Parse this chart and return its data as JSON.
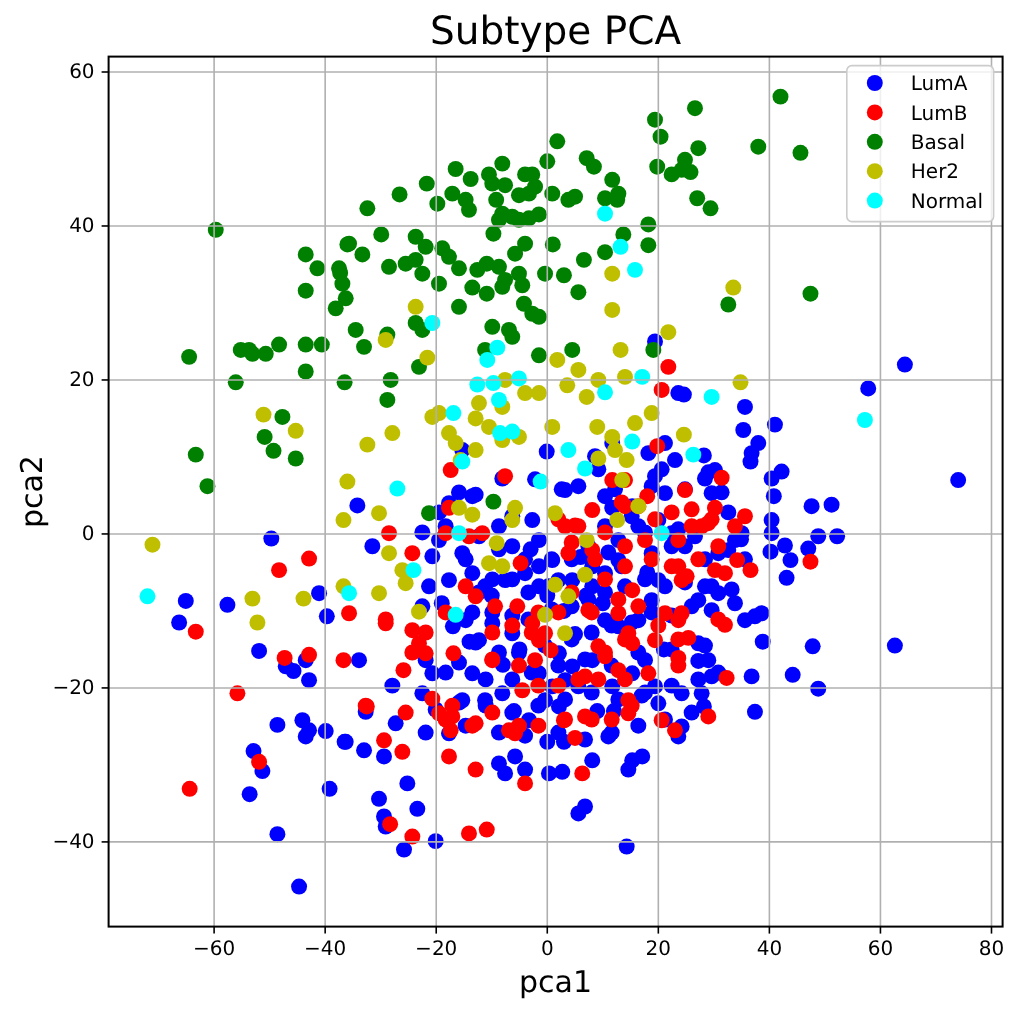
{
  "chart_data": {
    "type": "scatter",
    "title": "Subtype PCA",
    "xlabel": "pca1",
    "ylabel": "pca2",
    "xlim": [
      -79,
      82
    ],
    "ylim": [
      -51,
      62
    ],
    "xticks": [
      -60,
      -40,
      -20,
      0,
      20,
      40,
      60,
      80
    ],
    "yticks": [
      -40,
      -20,
      0,
      20,
      40,
      60
    ],
    "grid": true,
    "legend": "top right",
    "marker": "circle",
    "series": [
      {
        "name": "LumA",
        "color": "#0000ff",
        "x": [
          -49.7,
          -41.1,
          -39.7,
          -57.6,
          -65.1,
          -66.3,
          -51.9,
          -47.1,
          -45.7,
          -43.5,
          -42.9,
          -48.6,
          -44.1,
          -42.9,
          -43.5,
          -39.9,
          -36.5,
          -52.9,
          -51.3,
          -53.6,
          -39.2,
          -48.6,
          -44.7,
          -34.2,
          -31.5,
          -33.9,
          -27.9,
          -32.7,
          -27.3,
          -36.3,
          -33.0,
          -29.4,
          -25.2,
          -30.3,
          -29.4,
          -29.1,
          -23.4,
          -25.8,
          -20.1,
          -20.7,
          -21.3,
          -22.5,
          -21.9,
          -20.7,
          -22.5,
          -17.7,
          -14.7,
          -12.3,
          -13.5,
          -15.3,
          -17.7,
          -8.7,
          -7.6,
          -5.8,
          -4.0,
          0.3,
          2.7,
          5.6,
          6.8,
          8.1,
          14.3,
          11.0,
          14.6,
          15.3,
          17.1,
          23.6,
          19.4,
          -11.2,
          -7.6,
          -4.0,
          -1.5,
          -9.9,
          -6.3,
          -1.5,
          0.9,
          3.2,
          5.6,
          -0.4,
          2.1,
          -3.3,
          -11.2,
          -8.1,
          2.1,
          4.5,
          8.1,
          11.7,
          15.3,
          17.6,
          10.4,
          12.8,
          16.4,
          18.8,
          8.1,
          10.4,
          12.8,
          8.1,
          -1.5,
          0.9,
          4.5,
          -2.7,
          -1.5,
          -6.3,
          -8.7,
          10.4,
          12.8,
          16.4,
          20.0,
          22.4,
          24.8,
          20.0,
          18.8,
          -13.5,
          -15.3,
          -18.3,
          -19.5,
          15.3,
          11.7,
          19.4,
          23.6,
          21.2,
          23.0,
          18.2,
          11.7,
          8.6,
          19.4,
          21.2,
          -0.1,
          3.2,
          10.4,
          -8.1,
          -12.9,
          -15.3,
          -17.7,
          64.4,
          57.8,
          35.6,
          41.0,
          35.3,
          38.0,
          36.8,
          36.6,
          24.6,
          28.2,
          30.2,
          28.4,
          29.6,
          42.2,
          40.4,
          40.8,
          74.0,
          47.6,
          51.2,
          40.4,
          40.4,
          40.2,
          42.8,
          43.8,
          43.1,
          47.0,
          48.8,
          52.2,
          33.8,
          35.0,
          30.8,
          32.6,
          29.6,
          30.8,
          27.2,
          29.6,
          33.8,
          35.6,
          38.6,
          37.4,
          38.8,
          47.8,
          62.6,
          36.8,
          44.2,
          48.8,
          37.4,
          27.8,
          28.2,
          29.0,
          27.2,
          29.6,
          24.2,
          24.2,
          27.2,
          0,
          3,
          5,
          -5,
          -8,
          7,
          10,
          18,
          21,
          -3,
          2,
          6,
          -10,
          -14,
          -17,
          -19,
          0,
          3,
          -6,
          12,
          17,
          20,
          9,
          -13.5,
          -6.3,
          -2.2,
          2.6,
          5.6,
          9.2,
          12.2,
          18.8,
          20.6,
          24.8,
          29.0,
          31.4,
          32.6,
          34.9,
          35.6,
          33.2,
          28.4,
          28.4,
          26.6,
          23.6,
          22.4,
          17.6,
          15.2,
          13.4,
          11.0,
          7.4,
          4.4,
          0.8,
          -4.0,
          -6.3,
          -3.4,
          0.2,
          -9.9,
          -12.3,
          -13.5,
          -9.9,
          -6.3,
          -3.4,
          0.8,
          4.4,
          7.4,
          10.4,
          14.0,
          17.6,
          21.2,
          24.8,
          26.0,
          22.4,
          18.8,
          15.2,
          11.6,
          8.0,
          4.4,
          -0.4,
          -5.1,
          -8.7,
          -12.9,
          -15.9,
          -18.3,
          -11.1,
          -6.3,
          -2.8,
          2.0,
          6.8,
          11.6,
          16.4,
          22.4,
          28.4,
          30.8,
          27.2,
          22.4,
          17.6,
          12.8,
          8.0,
          3.2,
          -1.6,
          -6.3,
          -11.1,
          -15.9,
          -20.1,
          -21.9,
          -14.7,
          -8.7,
          -4.0,
          2.0,
          6.8,
          11.6,
          16.4,
          21.2,
          26.0,
          -15.9,
          -19.5,
          -22.5,
          -12.3,
          -8.7,
          -14.7
        ],
        "values": [
          -0.6,
          -7.7,
          -10.7,
          -9.2,
          -8.7,
          -11.5,
          -15.2,
          -17.2,
          -17.8,
          -16.4,
          -19.0,
          -24.8,
          -24.2,
          -25.5,
          -26.3,
          -25.6,
          -27.0,
          -28.2,
          -30.8,
          -33.8,
          -33.1,
          -39.0,
          -45.8,
          3.7,
          -1.6,
          -16.4,
          -19.7,
          -23.1,
          -24.6,
          -27.0,
          -28.1,
          -28.9,
          -32.4,
          -34.4,
          -36.7,
          -38.0,
          -35.7,
          -41.0,
          -39.9,
          -2.9,
          -6.8,
          -9.4,
          -16.4,
          -18.1,
          -20.7,
          -6.0,
          -11.2,
          -13.8,
          -18.1,
          -21.6,
          -25.9,
          -29.8,
          -31.1,
          -28.9,
          -30.6,
          -31.1,
          -30.9,
          -36.3,
          -35.4,
          -29.4,
          -40.6,
          -26.3,
          -30.6,
          -29.4,
          -28.9,
          -26.3,
          -19.8,
          -6.8,
          -6.0,
          -5.1,
          -6.8,
          -11.6,
          -12.9,
          -18.1,
          -19.8,
          -19.0,
          -19.8,
          -21.6,
          -22.4,
          -24.2,
          -21.6,
          -20.7,
          -15.5,
          -17.2,
          -16.4,
          -19.8,
          -18.1,
          -16.4,
          -11.2,
          -12.0,
          -11.2,
          -8.6,
          -6.8,
          -5.1,
          -3.4,
          -4.2,
          -4.2,
          -3.4,
          -6.0,
          1.8,
          -0.8,
          -1.6,
          1.0,
          1.0,
          -0.8,
          1.0,
          1.8,
          0.1,
          -1.6,
          -6.0,
          -2.5,
          -5.1,
          -2.5,
          1.0,
          -0.8,
          3.6,
          3.4,
          25.0,
          18.3,
          11.8,
          9.6,
          10.5,
          11.8,
          10.1,
          7.5,
          5.3,
          10.7,
          5.7,
          4.9,
          7.2,
          5.1,
          10.9,
          4.0,
          22.0,
          18.9,
          16.5,
          14.2,
          13.5,
          11.8,
          10.5,
          9.4,
          18.1,
          10.2,
          8.3,
          7.2,
          5.3,
          8.1,
          7.2,
          4.9,
          7.0,
          3.6,
          3.8,
          1.8,
          0.1,
          -2.3,
          -1.5,
          -3.4,
          -5.7,
          -1.9,
          -0.3,
          -0.3,
          -0.8,
          0.1,
          -2.5,
          -2.1,
          -6.8,
          -7.7,
          -8.6,
          -9.9,
          -9.0,
          -11.2,
          -10.3,
          -10.7,
          -14.0,
          -14.6,
          -14.5,
          -18.5,
          -18.3,
          -20.1,
          -23.1,
          -20.7,
          -22.4,
          -16.4,
          -16.5,
          -18.5,
          -20.7,
          -25.0,
          -14.2,
          -8,
          -10,
          -13,
          -15,
          -17,
          -8,
          -9,
          -5,
          -15,
          -2,
          -6,
          -3,
          -8,
          -14,
          -12,
          -9,
          -27,
          -27,
          -23,
          -23,
          -21,
          -22,
          -23,
          4.9,
          2.3,
          7.1,
          5.8,
          6.2,
          8.4,
          5.8,
          6.2,
          8.4,
          5.8,
          8.0,
          5.4,
          2.8,
          -0.7,
          -3.3,
          -7.2,
          -6.8,
          -3.3,
          -0.3,
          0.6,
          -1.6,
          0.2,
          2.3,
          -4.2,
          -2.4,
          -1.6,
          -3.3,
          -3.3,
          -3.3,
          -5.9,
          -7.6,
          -6.8,
          -5.9,
          -7.6,
          -10.2,
          -10.2,
          -10.6,
          -11.1,
          -9.8,
          -9.4,
          -8.5,
          -7.6,
          -6.8,
          -5.9,
          -6.8,
          -6.3,
          -9.4,
          -10.6,
          -10.2,
          -11.5,
          -11.9,
          -12.8,
          -13.7,
          -14.5,
          -15.4,
          -15.4,
          -14.1,
          -16.7,
          -18.0,
          -18.9,
          -18.9,
          -18.0,
          -17.1,
          -16.3,
          -17.1,
          -15.4,
          -15.0,
          -14.5,
          -18.0,
          -18.9,
          -19.7,
          -20.6,
          -21.5,
          -20.6,
          -21.5,
          -22.3,
          -23.2,
          -22.3,
          -21.9,
          -22.8,
          -25.8,
          -24.9,
          -25.8,
          -26.2,
          -25.8,
          -26.7,
          -25.8,
          -24.9,
          -24.1,
          -23.2,
          5.4,
          2.8,
          0.2,
          -0.3,
          -2.0,
          -3.3
        ]
      },
      {
        "name": "LumB",
        "color": "#ff0000",
        "x": [
          -42.9,
          -48.3,
          -63.3,
          -47.3,
          -42.9,
          -55.8,
          -51.9,
          -64.4,
          -36.7,
          -35.7,
          -28.5,
          -24.3,
          -29.1,
          -25.9,
          -32.5,
          -29.4,
          -26.1,
          -28.3,
          -24.3,
          -14.1,
          -10.9,
          -24.3,
          -23.1,
          -21.9,
          -17.7,
          -18.3,
          -16.9,
          -20.7,
          -19.5,
          -17.1,
          -17.4,
          -17.7,
          -12.9,
          -12.9,
          -12.9,
          -9.4,
          -14.1,
          -11.7,
          -9.9,
          -4.5,
          -6.9,
          -5.8,
          -4.0,
          -4.8,
          -5.4,
          -2.7,
          -1.5,
          -0.4,
          0.6,
          -2.2,
          3.2,
          5.0,
          3.8,
          8.1,
          7.4,
          9.2,
          6.8,
          3.0,
          5.0,
          6.3,
          6.8,
          10.4,
          12.8,
          14.0,
          15.3,
          12.8,
          14.6,
          15.3,
          14.6,
          14.6,
          14.0,
          8.1,
          19.4,
          21.2,
          23.6,
          23.0,
          20.6,
          18.2,
          22.4,
          24.2,
          17.6,
          21.8,
          20.6,
          19.8,
          -7.6,
          -17.4,
          14.0,
          18.0,
          11.7,
          31.4,
          24.8,
          30.2,
          35.6,
          29.0,
          27.8,
          26.0,
          34.2,
          36.6,
          30.2,
          32.0,
          47.4,
          25.1,
          24.2,
          32.0,
          25.4,
          32.3,
          29.0,
          23.6,
          23.6,
          13.4,
          16.4,
          19.4,
          22.4,
          26.0,
          29.6,
          33.8,
          30.8,
          27.2,
          23.6,
          18.8,
          14.0,
          10.4,
          5.6,
          2.0,
          4.4,
          8.6,
          10.4,
          12.8,
          16.4,
          20.0,
          23.6,
          14.0,
          10.4,
          8.0,
          4.4,
          2.0,
          -1.6,
          -2.8,
          -6.3,
          -9.9,
          -9.9,
          -5.1,
          -1.6,
          2.0,
          5.6,
          9.2,
          14.0,
          15.2,
          11.6,
          8.0,
          3.2,
          -1.6,
          -5.1,
          -9.9,
          -13.5,
          -17.1,
          -18.3,
          -25.5,
          -14.7,
          -18.3,
          -21.9,
          -24.3,
          -29.1,
          -32.7,
          23.6,
          30.8
        ],
        "values": [
          -3.2,
          -4.7,
          -12.7,
          -16.1,
          -15.7,
          -20.7,
          -29.6,
          -33.1,
          -16.4,
          -10.3,
          0.1,
          -2.5,
          -11.6,
          -17.7,
          -22.4,
          -26.8,
          -28.3,
          -37.7,
          -39.3,
          -38.9,
          -38.4,
          -12.5,
          -14.2,
          -15.5,
          3.4,
          0.1,
          -15.5,
          -21.4,
          -23.3,
          -23.7,
          -25.5,
          -28.9,
          -30.6,
          -24.6,
          -8.1,
          -9.4,
          -0.3,
          0.1,
          -16.4,
          -20.3,
          -25.5,
          -25.9,
          -32.4,
          -3.8,
          -9.4,
          -11.6,
          -13.8,
          -12.9,
          -15.1,
          -16.4,
          1.0,
          1.1,
          -2.5,
          -2.1,
          -9.9,
          -14.6,
          -18.5,
          -24.2,
          -26.5,
          -31.1,
          -23.7,
          -15.9,
          -17.7,
          -4.2,
          -7.3,
          -10.3,
          -12.9,
          -14.2,
          -21.6,
          -23.3,
          3.6,
          3.1,
          -13.8,
          -10.3,
          -11.2,
          -25.5,
          -24.2,
          -18.1,
          -4.2,
          -6.0,
          -0.8,
          21.7,
          18.7,
          11.4,
          7.5,
          8.3,
          7.0,
          4.9,
          7.0,
          7.3,
          5.7,
          3.4,
          2.3,
          1.4,
          1.0,
          1.0,
          -3.4,
          -4.7,
          -4.7,
          -5.1,
          -3.6,
          -5.5,
          -10.3,
          -11.8,
          -13.5,
          -18.7,
          -23.7,
          -16.1,
          -0.8,
          4.1,
          3.6,
          1.9,
          2.8,
          3.2,
          1.9,
          1.0,
          -1.6,
          -3.3,
          -4.2,
          -3.3,
          -1.6,
          0.2,
          1.0,
          1.9,
          -1.1,
          -3.3,
          -5.9,
          -8.5,
          -9.4,
          -11.9,
          -13.7,
          -13.7,
          -15.4,
          -10.2,
          -7.6,
          -10.2,
          -10.2,
          -12.8,
          -11.9,
          -12.8,
          -16.3,
          -17.1,
          -19.7,
          -19.7,
          -18.9,
          -18.9,
          -18.9,
          -22.3,
          -24.1,
          -24.1,
          -24.1,
          -24.9,
          -24.9,
          -23.2,
          -24.9,
          -22.3,
          -24.1,
          -23.2,
          -6.8,
          -10.2,
          -12.8,
          -15.4,
          -11.1,
          -22.3,
          -17.1,
          -11.1
        ]
      },
      {
        "name": "Basal",
        "color": "#008000",
        "x": [
          -59.7,
          -64.5,
          -56.1,
          -55.2,
          -53.7,
          -53.1,
          -50.7,
          -48.3,
          -43.5,
          -40.6,
          -43.5,
          -43.5,
          -41.4,
          -43.5,
          -38.1,
          -37.3,
          -36.9,
          -36.3,
          -36.0,
          -36.5,
          -47.7,
          -50.9,
          -49.3,
          -45.3,
          -63.3,
          -61.2,
          19.4,
          20.4,
          1.8,
          -16.5,
          -21.7,
          -13.8,
          -10.5,
          -9.9,
          -7.6,
          -8.1,
          -4.0,
          -2.7,
          -5.1,
          -3.3,
          -2.2,
          0,
          7.1,
          8.4,
          11.7,
          12.8,
          10.4,
          12.6,
          19.8,
          22.4,
          24.2,
          -26.6,
          -32.4,
          -19.8,
          -17.1,
          -14.7,
          -14.1,
          -9.2,
          -8.1,
          -6.3,
          -5.1,
          -3.3,
          -1.5,
          0.9,
          3.8,
          5.0,
          -29.9,
          -35.7,
          -33.3,
          -37.5,
          -28.5,
          -25.5,
          -23.7,
          -22.5,
          -23.7,
          -21.9,
          -18.9,
          -17.7,
          -19.5,
          -15.9,
          -12.6,
          -10.9,
          -8.7,
          -7.6,
          -5.1,
          -5.8,
          -4.0,
          -9.7,
          -8.7,
          -0.4,
          3.0,
          5.6,
          1.0,
          6.6,
          10.4,
          13.7,
          18.2,
          18.2,
          -13.5,
          -10.9,
          -8.1,
          -4.5,
          -15.9,
          -4.2,
          -2.7,
          -1.5,
          -23.7,
          -22.5,
          -34.5,
          -33.0,
          -28.8,
          -28.2,
          -28.8,
          -23.1,
          -9.9,
          -6.9,
          -6.3,
          -11.2,
          -1.5,
          4.5,
          19.1,
          -9.7,
          -21.3,
          26.6,
          42.0,
          27.2,
          24.8,
          25.8,
          38.0,
          45.6,
          27.0,
          29.4,
          32.6,
          47.4
        ],
        "values": [
          39.5,
          23.0,
          19.7,
          23.9,
          23.9,
          23.4,
          23.4,
          24.6,
          24.6,
          24.6,
          21.1,
          36.3,
          34.5,
          31.6,
          29.3,
          33.9,
          32.5,
          30.6,
          37.6,
          19.7,
          15.2,
          12.6,
          10.8,
          9.8,
          10.3,
          6.2,
          53.8,
          51.6,
          51.0,
          47.4,
          45.5,
          46.1,
          46.7,
          45.5,
          45.3,
          48.1,
          46.7,
          46.7,
          44.0,
          44.2,
          45.1,
          48.4,
          48.8,
          47.7,
          46.0,
          44.2,
          43.6,
          43.4,
          47.7,
          46.7,
          47.3,
          44.1,
          42.3,
          42.9,
          44.2,
          43.4,
          42.1,
          43.4,
          41.6,
          41.2,
          40.8,
          41.0,
          41.5,
          44.2,
          43.4,
          43.8,
          38.9,
          37.7,
          36.3,
          34.5,
          34.7,
          35.1,
          35.6,
          33.8,
          38.6,
          37.3,
          37.1,
          36.0,
          32.5,
          34.5,
          34.3,
          35.1,
          34.7,
          33.0,
          33.8,
          36.4,
          37.7,
          39.0,
          40.8,
          33.8,
          33.6,
          31.4,
          37.6,
          35.6,
          36.6,
          38.9,
          40.2,
          37.5,
          32.0,
          31.2,
          32.1,
          32.3,
          29.5,
          29.9,
          28.6,
          28.2,
          27.4,
          26.5,
          26.5,
          24.3,
          25.9,
          20.0,
          17.4,
          21.7,
          26.9,
          26.5,
          25.6,
          23.9,
          23.2,
          23.9,
          23.9,
          4.2,
          2.7,
          55.3,
          56.8,
          50.1,
          48.6,
          47.0,
          50.3,
          49.5,
          43.6,
          42.3,
          29.8,
          31.2
        ]
      },
      {
        "name": "Her2",
        "color": "#bfbf00",
        "x": [
          -51.1,
          -45.3,
          -36.0,
          -23.7,
          -29.1,
          -21.6,
          11.7,
          11.7,
          21.8,
          13.2,
          1.8,
          5.6,
          9.2,
          7.1,
          14.0,
          3.6,
          -1.5,
          -4.0,
          -7.6,
          -8.1,
          -12.3,
          -12.9,
          -10.5,
          -8.1,
          -5.1,
          -20.7,
          -19.5,
          -27.9,
          -32.4,
          -17.7,
          -16.5,
          -12.9,
          -15.6,
          0.9,
          9.0,
          11.7,
          15.8,
          18.8,
          9.2,
          12.2,
          14.3,
          13.5,
          33.5,
          34.8,
          24.6,
          -71.1,
          -53.1,
          -52.2,
          -43.9,
          -36.7,
          -36.7,
          -30.3,
          -28.5,
          -26.1,
          -25.5,
          -30.3,
          -23.1,
          -15.9,
          -13.5,
          -9.1,
          -10.5,
          -8.1,
          -5.8,
          -6.3,
          1.4,
          1.4,
          3.8,
          -0.4,
          3.2,
          7.1,
          6.8,
          12.6,
          16.4
        ],
        "values": [
          15.5,
          13.4,
          6.8,
          29.5,
          25.2,
          22.9,
          29.1,
          33.8,
          26.2,
          23.9,
          22.6,
          21.3,
          20.0,
          17.8,
          20.4,
          19.3,
          18.3,
          18.3,
          20.0,
          16.5,
          17.0,
          15.0,
          13.9,
          12.2,
          12.6,
          15.2,
          15.7,
          13.1,
          11.6,
          13.1,
          11.8,
          10.9,
          9.6,
          13.9,
          13.9,
          12.6,
          14.4,
          15.7,
          9.8,
          10.9,
          9.6,
          7.0,
          32.0,
          19.7,
          12.9,
          -1.4,
          -8.4,
          -11.5,
          -8.4,
          1.8,
          -6.8,
          2.7,
          -2.5,
          -4.7,
          -6.4,
          -7.7,
          -10.1,
          3.4,
          2.5,
          -1.2,
          -3.8,
          -4.2,
          3.4,
          1.8,
          2.7,
          -6.6,
          -8.1,
          -10.5,
          -12.9,
          -0.8,
          -5.3,
          1.8,
          3.6
        ]
      },
      {
        "name": "Normal",
        "color": "#00ffff",
        "x": [
          -20.7,
          10.4,
          13.2,
          15.8,
          -9.0,
          -10.8,
          -12.6,
          -9.7,
          -5.1,
          -8.7,
          10.4,
          17.1,
          -16.9,
          -8.5,
          -6.3,
          15.3,
          3.8,
          6.8,
          -1.2,
          -27.0,
          -15.3,
          29.6,
          57.2,
          26.3,
          -72.0,
          -35.7,
          -15.9,
          -24.1,
          -16.5,
          20.6
        ],
        "values": [
          27.4,
          41.6,
          37.3,
          34.3,
          24.2,
          22.6,
          19.4,
          19.6,
          20.2,
          17.4,
          18.4,
          20.4,
          15.7,
          13.1,
          13.3,
          12.0,
          10.9,
          8.5,
          6.8,
          5.9,
          9.4,
          17.8,
          14.8,
          10.3,
          -8.1,
          -7.7,
          0.1,
          -4.7,
          -10.5,
          0.1
        ]
      }
    ]
  }
}
